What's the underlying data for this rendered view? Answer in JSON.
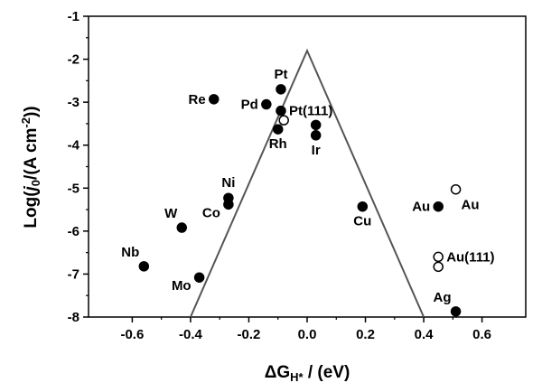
{
  "chart_data": {
    "type": "scatter",
    "title": "",
    "xlabel": {
      "main": "ΔG",
      "sub": "H*",
      "rest": " / (eV)"
    },
    "ylabel": {
      "pre": "Log(",
      "j": "j",
      "sub": "0",
      "mid": "/(A cm",
      "sup": "-2",
      "post": "))"
    },
    "xlim": [
      -0.75,
      0.75
    ],
    "ylim": [
      -8,
      -1
    ],
    "xticks": [
      -0.6,
      -0.4,
      -0.2,
      0.0,
      0.2,
      0.4,
      0.6
    ],
    "xtick_labels": [
      "-0.6",
      "-0.4",
      "-0.2",
      "0.0",
      "0.2",
      "0.4",
      "0.6"
    ],
    "yticks": [
      -8,
      -7,
      -6,
      -5,
      -4,
      -3,
      -2,
      -1
    ],
    "ytick_labels": [
      "-8",
      "-7",
      "-6",
      "-5",
      "-4",
      "-3",
      "-2",
      "-1"
    ],
    "volcano_line": [
      [
        -0.4,
        -8.0
      ],
      [
        0.0,
        -1.8
      ],
      [
        0.4,
        -8.0
      ]
    ],
    "grid": false,
    "points": [
      {
        "label": "Pt",
        "x": -0.09,
        "y": -2.7,
        "filled": true,
        "label_pos": "above"
      },
      {
        "label": "Re",
        "x": -0.32,
        "y": -2.93,
        "filled": true,
        "label_pos": "left"
      },
      {
        "label": "Pd",
        "x": -0.14,
        "y": -3.05,
        "filled": true,
        "label_pos": "left"
      },
      {
        "label": "Pt(111)",
        "x": -0.09,
        "y": -3.2,
        "filled": true,
        "label_pos": "right"
      },
      {
        "label": "",
        "x": -0.08,
        "y": -3.42,
        "filled": false,
        "label_pos": "none"
      },
      {
        "label": "",
        "x": 0.03,
        "y": -3.53,
        "filled": true,
        "label_pos": "none"
      },
      {
        "label": "Rh",
        "x": -0.1,
        "y": -3.63,
        "filled": true,
        "label_pos": "below"
      },
      {
        "label": "Ir",
        "x": 0.03,
        "y": -3.77,
        "filled": true,
        "label_pos": "below"
      },
      {
        "label": "Ni",
        "x": -0.27,
        "y": -5.23,
        "filled": true,
        "label_pos": "above"
      },
      {
        "label": "Co",
        "x": -0.27,
        "y": -5.38,
        "filled": true,
        "label_pos": "left-below"
      },
      {
        "label": "Cu",
        "x": 0.19,
        "y": -5.43,
        "filled": true,
        "label_pos": "below"
      },
      {
        "label": "Au",
        "x": 0.45,
        "y": -5.43,
        "filled": true,
        "label_pos": "left"
      },
      {
        "label": "Au",
        "x": 0.51,
        "y": -5.03,
        "filled": false,
        "label_pos": "right-below"
      },
      {
        "label": "W",
        "x": -0.43,
        "y": -5.92,
        "filled": true,
        "label_pos": "above-left"
      },
      {
        "label": "Au(111)",
        "x": 0.45,
        "y": -6.6,
        "filled": false,
        "label_pos": "right"
      },
      {
        "label": "",
        "x": 0.45,
        "y": -6.83,
        "filled": false,
        "label_pos": "none"
      },
      {
        "label": "Nb",
        "x": -0.56,
        "y": -6.82,
        "filled": true,
        "label_pos": "above-left"
      },
      {
        "label": "Mo",
        "x": -0.37,
        "y": -7.08,
        "filled": true,
        "label_pos": "left-below"
      },
      {
        "label": "Ag",
        "x": 0.51,
        "y": -7.87,
        "filled": true,
        "label_pos": "above-left"
      }
    ]
  }
}
